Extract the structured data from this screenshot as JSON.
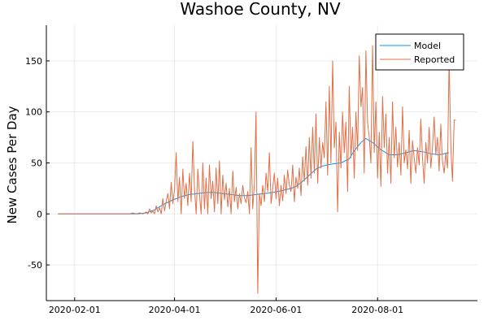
{
  "chart_data": {
    "type": "line",
    "title": "Washoe County, NV",
    "xlabel": "",
    "ylabel": "New Cases Per Day",
    "x_type": "date",
    "xlim": [
      "2020-01-15",
      "2020-09-30"
    ],
    "ylim": [
      -85,
      185
    ],
    "x_ticks": [
      "2020-02-01",
      "2020-04-01",
      "2020-06-01",
      "2020-08-01"
    ],
    "y_ticks": [
      -50,
      0,
      50,
      100,
      150
    ],
    "grid": true,
    "legend_position": "top-right",
    "series": [
      {
        "name": "Model",
        "color": "#009AFA",
        "points": [
          [
            "2020-01-22",
            0
          ],
          [
            "2020-02-10",
            0
          ],
          [
            "2020-03-01",
            0
          ],
          [
            "2020-03-10",
            0
          ],
          [
            "2020-03-15",
            1
          ],
          [
            "2020-03-20",
            4
          ],
          [
            "2020-03-25",
            9
          ],
          [
            "2020-03-30",
            13
          ],
          [
            "2020-04-05",
            17
          ],
          [
            "2020-04-10",
            19
          ],
          [
            "2020-04-15",
            20
          ],
          [
            "2020-04-20",
            21
          ],
          [
            "2020-04-25",
            21
          ],
          [
            "2020-04-30",
            20
          ],
          [
            "2020-05-05",
            19
          ],
          [
            "2020-05-10",
            18
          ],
          [
            "2020-05-15",
            18
          ],
          [
            "2020-05-20",
            19
          ],
          [
            "2020-05-25",
            20
          ],
          [
            "2020-05-30",
            21
          ],
          [
            "2020-06-05",
            23
          ],
          [
            "2020-06-10",
            25
          ],
          [
            "2020-06-13",
            27
          ],
          [
            "2020-06-17",
            32
          ],
          [
            "2020-06-21",
            38
          ],
          [
            "2020-06-25",
            44
          ],
          [
            "2020-06-29",
            47
          ],
          [
            "2020-07-05",
            49
          ],
          [
            "2020-07-10",
            50
          ],
          [
            "2020-07-15",
            54
          ],
          [
            "2020-07-18",
            62
          ],
          [
            "2020-07-22",
            70
          ],
          [
            "2020-07-25",
            74
          ],
          [
            "2020-07-29",
            70
          ],
          [
            "2020-08-03",
            63
          ],
          [
            "2020-08-08",
            58
          ],
          [
            "2020-08-13",
            58
          ],
          [
            "2020-08-18",
            60
          ],
          [
            "2020-08-23",
            62
          ],
          [
            "2020-08-28",
            61
          ],
          [
            "2020-09-02",
            59
          ],
          [
            "2020-09-07",
            58
          ],
          [
            "2020-09-10",
            59
          ],
          [
            "2020-09-13",
            60
          ]
        ]
      },
      {
        "name": "Reported",
        "color": "#E26F46",
        "points": [
          [
            "2020-01-22",
            0
          ],
          [
            "2020-02-10",
            0
          ],
          [
            "2020-03-05",
            0
          ],
          [
            "2020-03-07",
            1
          ],
          [
            "2020-03-09",
            0
          ],
          [
            "2020-03-11",
            1
          ],
          [
            "2020-03-13",
            0
          ],
          [
            "2020-03-15",
            2
          ],
          [
            "2020-03-16",
            0
          ],
          [
            "2020-03-17",
            5
          ],
          [
            "2020-03-18",
            1
          ],
          [
            "2020-03-19",
            3
          ],
          [
            "2020-03-20",
            0
          ],
          [
            "2020-03-21",
            8
          ],
          [
            "2020-03-22",
            2
          ],
          [
            "2020-03-23",
            6
          ],
          [
            "2020-03-24",
            0
          ],
          [
            "2020-03-25",
            15
          ],
          [
            "2020-03-26",
            3
          ],
          [
            "2020-03-27",
            12
          ],
          [
            "2020-03-28",
            20
          ],
          [
            "2020-03-29",
            5
          ],
          [
            "2020-03-30",
            31
          ],
          [
            "2020-03-31",
            10
          ],
          [
            "2020-04-01",
            24
          ],
          [
            "2020-04-02",
            60
          ],
          [
            "2020-04-03",
            12
          ],
          [
            "2020-04-04",
            36
          ],
          [
            "2020-04-05",
            0
          ],
          [
            "2020-04-06",
            44
          ],
          [
            "2020-04-07",
            15
          ],
          [
            "2020-04-08",
            30
          ],
          [
            "2020-04-09",
            8
          ],
          [
            "2020-04-10",
            40
          ],
          [
            "2020-04-11",
            12
          ],
          [
            "2020-04-12",
            71
          ],
          [
            "2020-04-13",
            25
          ],
          [
            "2020-04-14",
            0
          ],
          [
            "2020-04-15",
            44
          ],
          [
            "2020-04-16",
            19
          ],
          [
            "2020-04-17",
            0
          ],
          [
            "2020-04-18",
            50
          ],
          [
            "2020-04-19",
            5
          ],
          [
            "2020-04-20",
            35
          ],
          [
            "2020-04-21",
            0
          ],
          [
            "2020-04-22",
            48
          ],
          [
            "2020-04-23",
            15
          ],
          [
            "2020-04-24",
            32
          ],
          [
            "2020-04-25",
            2
          ],
          [
            "2020-04-26",
            45
          ],
          [
            "2020-04-27",
            10
          ],
          [
            "2020-04-28",
            52
          ],
          [
            "2020-04-29",
            0
          ],
          [
            "2020-04-30",
            38
          ],
          [
            "2020-05-01",
            14
          ],
          [
            "2020-05-02",
            30
          ],
          [
            "2020-05-03",
            7
          ],
          [
            "2020-05-04",
            25
          ],
          [
            "2020-05-05",
            0
          ],
          [
            "2020-05-06",
            42
          ],
          [
            "2020-05-07",
            12
          ],
          [
            "2020-05-08",
            26
          ],
          [
            "2020-05-09",
            5
          ],
          [
            "2020-05-10",
            20
          ],
          [
            "2020-05-11",
            10
          ],
          [
            "2020-05-12",
            28
          ],
          [
            "2020-05-13",
            16
          ],
          [
            "2020-05-14",
            11
          ],
          [
            "2020-05-15",
            22
          ],
          [
            "2020-05-16",
            0
          ],
          [
            "2020-05-17",
            65
          ],
          [
            "2020-05-18",
            5
          ],
          [
            "2020-05-19",
            30
          ],
          [
            "2020-05-20",
            100
          ],
          [
            "2020-05-21",
            -78
          ],
          [
            "2020-05-22",
            20
          ],
          [
            "2020-05-23",
            8
          ],
          [
            "2020-05-24",
            28
          ],
          [
            "2020-05-25",
            12
          ],
          [
            "2020-05-26",
            40
          ],
          [
            "2020-05-27",
            22
          ],
          [
            "2020-05-28",
            60
          ],
          [
            "2020-05-29",
            10
          ],
          [
            "2020-05-30",
            25
          ],
          [
            "2020-05-31",
            40
          ],
          [
            "2020-06-01",
            15
          ],
          [
            "2020-06-02",
            35
          ],
          [
            "2020-06-03",
            8
          ],
          [
            "2020-06-04",
            28
          ],
          [
            "2020-06-05",
            13
          ],
          [
            "2020-06-06",
            38
          ],
          [
            "2020-06-07",
            20
          ],
          [
            "2020-06-08",
            43
          ],
          [
            "2020-06-09",
            28
          ],
          [
            "2020-06-10",
            22
          ],
          [
            "2020-06-11",
            48
          ],
          [
            "2020-06-12",
            12
          ],
          [
            "2020-06-13",
            36
          ],
          [
            "2020-06-14",
            25
          ],
          [
            "2020-06-15",
            45
          ],
          [
            "2020-06-16",
            18
          ],
          [
            "2020-06-17",
            56
          ],
          [
            "2020-06-18",
            32
          ],
          [
            "2020-06-19",
            66
          ],
          [
            "2020-06-20",
            28
          ],
          [
            "2020-06-21",
            75
          ],
          [
            "2020-06-22",
            35
          ],
          [
            "2020-06-23",
            85
          ],
          [
            "2020-06-24",
            40
          ],
          [
            "2020-06-25",
            98
          ],
          [
            "2020-06-26",
            30
          ],
          [
            "2020-06-27",
            75
          ],
          [
            "2020-06-28",
            45
          ],
          [
            "2020-06-29",
            70
          ],
          [
            "2020-06-30",
            55
          ],
          [
            "2020-07-01",
            110
          ],
          [
            "2020-07-02",
            38
          ],
          [
            "2020-07-03",
            125
          ],
          [
            "2020-07-04",
            50
          ],
          [
            "2020-07-05",
            150
          ],
          [
            "2020-07-06",
            65
          ],
          [
            "2020-07-07",
            90
          ],
          [
            "2020-07-08",
            2
          ],
          [
            "2020-07-09",
            80
          ],
          [
            "2020-07-10",
            45
          ],
          [
            "2020-07-11",
            100
          ],
          [
            "2020-07-12",
            60
          ],
          [
            "2020-07-13",
            90
          ],
          [
            "2020-07-14",
            22
          ],
          [
            "2020-07-15",
            125
          ],
          [
            "2020-07-16",
            55
          ],
          [
            "2020-07-17",
            85
          ],
          [
            "2020-07-18",
            35
          ],
          [
            "2020-07-19",
            100
          ],
          [
            "2020-07-20",
            62
          ],
          [
            "2020-07-21",
            155
          ],
          [
            "2020-07-22",
            105
          ],
          [
            "2020-07-23",
            124
          ],
          [
            "2020-07-24",
            40
          ],
          [
            "2020-07-25",
            160
          ],
          [
            "2020-07-26",
            90
          ],
          [
            "2020-07-27",
            75
          ],
          [
            "2020-07-28",
            50
          ],
          [
            "2020-07-29",
            165
          ],
          [
            "2020-07-30",
            60
          ],
          [
            "2020-07-31",
            110
          ],
          [
            "2020-08-01",
            35
          ],
          [
            "2020-08-02",
            80
          ],
          [
            "2020-08-03",
            27
          ],
          [
            "2020-08-04",
            115
          ],
          [
            "2020-08-05",
            65
          ],
          [
            "2020-08-06",
            98
          ],
          [
            "2020-08-07",
            40
          ],
          [
            "2020-08-08",
            75
          ],
          [
            "2020-08-09",
            30
          ],
          [
            "2020-08-10",
            110
          ],
          [
            "2020-08-11",
            55
          ],
          [
            "2020-08-12",
            85
          ],
          [
            "2020-08-13",
            46
          ],
          [
            "2020-08-14",
            70
          ],
          [
            "2020-08-15",
            38
          ],
          [
            "2020-08-16",
            105
          ],
          [
            "2020-08-17",
            50
          ],
          [
            "2020-08-18",
            63
          ],
          [
            "2020-08-19",
            44
          ],
          [
            "2020-08-20",
            82
          ],
          [
            "2020-08-21",
            30
          ],
          [
            "2020-08-22",
            72
          ],
          [
            "2020-08-23",
            55
          ],
          [
            "2020-08-24",
            40
          ],
          [
            "2020-08-25",
            65
          ],
          [
            "2020-08-26",
            48
          ],
          [
            "2020-08-27",
            93
          ],
          [
            "2020-08-28",
            55
          ],
          [
            "2020-08-29",
            30
          ],
          [
            "2020-08-30",
            70
          ],
          [
            "2020-08-31",
            50
          ],
          [
            "2020-09-01",
            85
          ],
          [
            "2020-09-02",
            45
          ],
          [
            "2020-09-03",
            65
          ],
          [
            "2020-09-04",
            95
          ],
          [
            "2020-09-05",
            58
          ],
          [
            "2020-09-06",
            75
          ],
          [
            "2020-09-07",
            42
          ],
          [
            "2020-09-08",
            88
          ],
          [
            "2020-09-09",
            52
          ],
          [
            "2020-09-10",
            40
          ],
          [
            "2020-09-11",
            60
          ],
          [
            "2020-09-12",
            45
          ],
          [
            "2020-09-13",
            152
          ],
          [
            "2020-09-14",
            65
          ],
          [
            "2020-09-15",
            32
          ],
          [
            "2020-09-16",
            92
          ],
          [
            "2020-09-17",
            92
          ]
        ]
      }
    ]
  }
}
